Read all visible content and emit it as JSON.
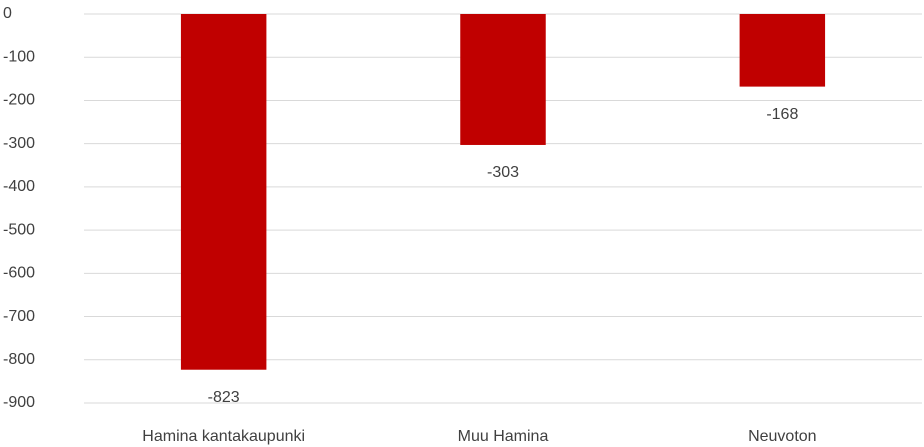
{
  "chart_data": {
    "type": "bar",
    "categories": [
      "Hamina kantakaupunki",
      "Muu Hamina",
      "Neuvoton"
    ],
    "values": [
      -823,
      -303,
      -168
    ],
    "color": "#c00000",
    "ylim": [
      -900,
      0
    ],
    "yticks": [
      0,
      -100,
      -200,
      -300,
      -400,
      -500,
      -600,
      -700,
      -800,
      -900
    ],
    "grid": true
  }
}
